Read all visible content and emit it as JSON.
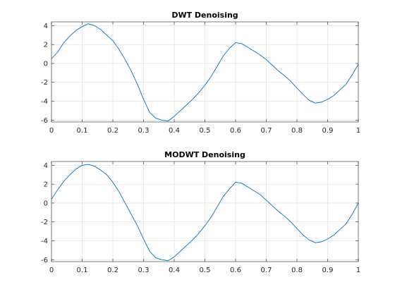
{
  "figure": {
    "background": "#ffffff",
    "axes_color": "#262626",
    "grid_color": "#dcdcdc",
    "line_color": "#0072bd"
  },
  "chart_data": [
    {
      "type": "line",
      "title": "DWT Denoising",
      "xlabel": "",
      "ylabel": "",
      "xlim": [
        0,
        1
      ],
      "ylim": [
        -6.2,
        4.4
      ],
      "xticks": [
        0,
        0.1,
        0.2,
        0.3,
        0.4,
        0.5,
        0.6,
        0.7,
        0.8,
        0.9,
        1
      ],
      "xtick_labels": [
        "0",
        "0.1",
        "0.2",
        "0.3",
        "0.4",
        "0.5",
        "0.6",
        "0.7",
        "0.8",
        "0.9",
        "1"
      ],
      "yticks": [
        -6,
        -4,
        -2,
        0,
        2,
        4
      ],
      "ytick_labels": [
        "-6",
        "-4",
        "-2",
        "0",
        "2",
        "4"
      ],
      "grid": true,
      "legend": "none",
      "series": [
        {
          "x": [
            0,
            0.02,
            0.04,
            0.06,
            0.08,
            0.1,
            0.12,
            0.14,
            0.16,
            0.18,
            0.2,
            0.22,
            0.24,
            0.26,
            0.28,
            0.3,
            0.32,
            0.34,
            0.36,
            0.38,
            0.4,
            0.42,
            0.44,
            0.46,
            0.48,
            0.5,
            0.52,
            0.54,
            0.56,
            0.58,
            0.6,
            0.62,
            0.64,
            0.66,
            0.68,
            0.7,
            0.72,
            0.74,
            0.76,
            0.78,
            0.8,
            0.82,
            0.84,
            0.86,
            0.88,
            0.9,
            0.92,
            0.94,
            0.96,
            0.98,
            1.0
          ],
          "y": [
            0.5,
            1.2,
            2.2,
            2.9,
            3.5,
            3.9,
            4.2,
            4.0,
            3.6,
            3.0,
            2.4,
            1.5,
            0.4,
            -0.8,
            -2.2,
            -3.8,
            -5.2,
            -5.8,
            -6.0,
            -6.1,
            -5.6,
            -5.0,
            -4.4,
            -3.8,
            -3.1,
            -2.3,
            -1.4,
            -0.3,
            0.8,
            1.6,
            2.2,
            2.1,
            1.7,
            1.3,
            0.9,
            0.4,
            -0.2,
            -0.8,
            -1.3,
            -1.9,
            -2.6,
            -3.3,
            -3.9,
            -4.2,
            -4.1,
            -3.8,
            -3.4,
            -2.8,
            -2.2,
            -1.2,
            -0.1
          ]
        }
      ]
    },
    {
      "type": "line",
      "title": "MODWT Denoising",
      "xlabel": "",
      "ylabel": "",
      "xlim": [
        0,
        1
      ],
      "ylim": [
        -6.2,
        4.4
      ],
      "xticks": [
        0,
        0.1,
        0.2,
        0.3,
        0.4,
        0.5,
        0.6,
        0.7,
        0.8,
        0.9,
        1
      ],
      "xtick_labels": [
        "0",
        "0.1",
        "0.2",
        "0.3",
        "0.4",
        "0.5",
        "0.6",
        "0.7",
        "0.8",
        "0.9",
        "1"
      ],
      "yticks": [
        -6,
        -4,
        -2,
        0,
        2,
        4
      ],
      "ytick_labels": [
        "-6",
        "-4",
        "-2",
        "0",
        "2",
        "4"
      ],
      "grid": true,
      "legend": "none",
      "series": [
        {
          "x": [
            0,
            0.02,
            0.04,
            0.06,
            0.08,
            0.1,
            0.12,
            0.14,
            0.16,
            0.18,
            0.2,
            0.22,
            0.24,
            0.26,
            0.28,
            0.3,
            0.32,
            0.34,
            0.36,
            0.38,
            0.4,
            0.42,
            0.44,
            0.46,
            0.48,
            0.5,
            0.52,
            0.54,
            0.56,
            0.58,
            0.6,
            0.62,
            0.64,
            0.66,
            0.68,
            0.7,
            0.72,
            0.74,
            0.76,
            0.78,
            0.8,
            0.82,
            0.84,
            0.86,
            0.88,
            0.9,
            0.92,
            0.94,
            0.96,
            0.98,
            1.0
          ],
          "y": [
            0.4,
            1.4,
            2.3,
            3.0,
            3.6,
            4.0,
            4.1,
            3.9,
            3.5,
            3.0,
            2.2,
            1.2,
            0.0,
            -1.2,
            -2.4,
            -3.8,
            -5.1,
            -5.8,
            -6.0,
            -6.1,
            -5.7,
            -5.1,
            -4.5,
            -3.9,
            -3.2,
            -2.4,
            -1.5,
            -0.4,
            0.7,
            1.5,
            2.2,
            2.1,
            1.7,
            1.3,
            0.9,
            0.3,
            -0.3,
            -0.9,
            -1.4,
            -2.0,
            -2.7,
            -3.4,
            -3.9,
            -4.2,
            -4.1,
            -3.8,
            -3.4,
            -2.8,
            -2.2,
            -1.2,
            0.0
          ]
        }
      ]
    }
  ]
}
